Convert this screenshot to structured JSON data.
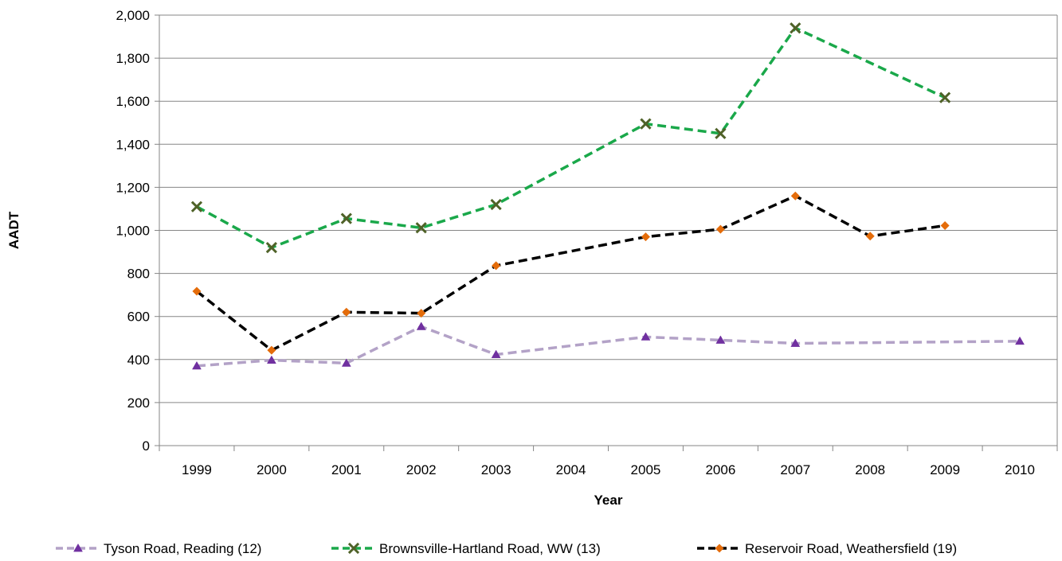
{
  "chart_data": {
    "type": "line",
    "title": "",
    "xlabel": "Year",
    "ylabel": "AADT",
    "categories": [
      "1999",
      "2000",
      "2001",
      "2002",
      "2003",
      "2004",
      "2005",
      "2006",
      "2007",
      "2008",
      "2009",
      "2010"
    ],
    "ylim": [
      0,
      2000
    ],
    "yticks": [
      "0",
      "200",
      "400",
      "600",
      "800",
      "1,000",
      "1,200",
      "1,400",
      "1,600",
      "1,800",
      "2,000"
    ],
    "grid": "horizontal",
    "legend_position": "bottom",
    "series": [
      {
        "name": "Tyson Road, Reading (12)",
        "color": "#b3a2c7",
        "marker_color": "#7030a0",
        "marker": "triangle",
        "line_style": "dashed",
        "values": [
          370,
          397,
          383,
          553,
          423,
          null,
          505,
          490,
          475,
          null,
          null,
          485
        ]
      },
      {
        "name": "Brownsville-Hartland Road, WW (13)",
        "color": "#1aa84a",
        "marker_color": "#4f6228",
        "marker": "x",
        "line_style": "dashed",
        "values": [
          1110,
          920,
          1055,
          1012,
          1120,
          null,
          1495,
          1450,
          1940,
          null,
          1617,
          null
        ]
      },
      {
        "name": "Reservoir Road, Weathersfield (19)",
        "color": "#000000",
        "marker_color": "#e46c0a",
        "marker": "diamond",
        "line_style": "dashed",
        "values": [
          717,
          443,
          620,
          615,
          836,
          null,
          970,
          1005,
          1160,
          973,
          1022,
          null
        ]
      }
    ]
  }
}
